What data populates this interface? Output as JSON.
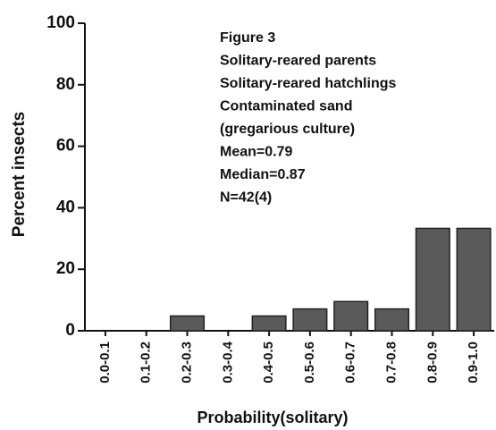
{
  "chart_data": {
    "type": "bar",
    "annotations": [
      "Figure 3",
      "Solitary-reared  parents",
      "Solitary-reared  hatchlings",
      "Contaminated sand",
      "(gregarious culture)",
      "Mean=0.79",
      "Median=0.87",
      "N=42(4)"
    ],
    "x_label": "Probability(solitary)",
    "y_label": "Percent insects",
    "categories": [
      "0.0-0.1",
      "0.1-0.2",
      "0.2-0.3",
      "0.3-0.4",
      "0.4-0.5",
      "0.5-0.6",
      "0.6-0.7",
      "0.7-0.8",
      "0.8-0.9",
      "0.9-1.0"
    ],
    "values": [
      0,
      0,
      4.8,
      0,
      4.8,
      7.1,
      9.5,
      7.1,
      33.3,
      33.3
    ],
    "color": "#5a5a5a",
    "ylim": [
      0,
      100
    ],
    "yticks": [
      0,
      20,
      40,
      60,
      80,
      100
    ]
  }
}
